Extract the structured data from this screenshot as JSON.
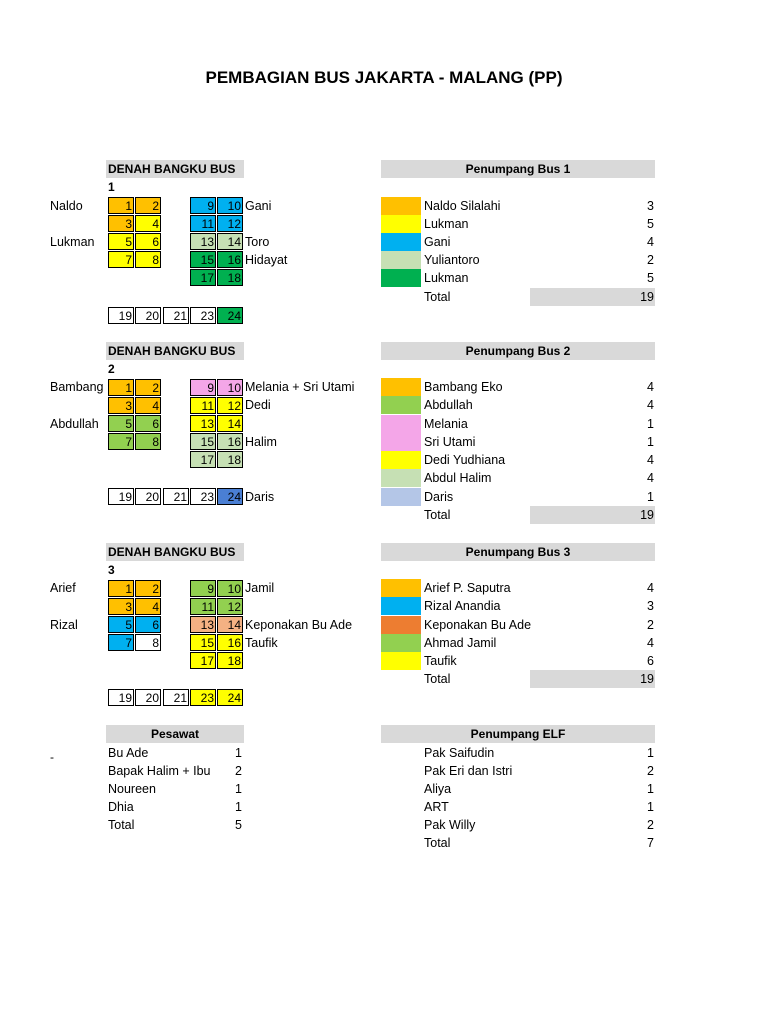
{
  "title": "PEMBAGIAN BUS JAKARTA - MALANG (PP)",
  "colors": {
    "orange": "#ffc000",
    "yellow": "#ffff00",
    "blue": "#00b0f0",
    "lightgreen": "#c6e0b4",
    "green": "#00b050",
    "midgreen": "#92d050",
    "pink": "#f4a6e8",
    "salmon": "#f4b183",
    "darkorange": "#ed7d31",
    "lightblue": "#b4c6e7",
    "cornflower": "#4a7fd4",
    "header_gray": "#d9d9d9"
  },
  "bus1": {
    "denah_title": "DENAH BANGKU BUS 1",
    "penumpang_title": "Penumpang Bus 1",
    "left_names": [
      "Naldo",
      "Lukman"
    ],
    "right_names": [
      "Gani",
      "Toro",
      "Hidayat"
    ],
    "seats_left": [
      [
        "1",
        "2"
      ],
      [
        "3",
        "4"
      ],
      [
        "5",
        "6"
      ],
      [
        "7",
        "8"
      ]
    ],
    "seats_right": [
      [
        "9",
        "10"
      ],
      [
        "11",
        "12"
      ],
      [
        "13",
        "14"
      ],
      [
        "15",
        "16"
      ],
      [
        "17",
        "18"
      ]
    ],
    "back_row": [
      "19",
      "20",
      "21",
      "23",
      "24"
    ],
    "passengers": [
      {
        "name": "Naldo Silalahi",
        "count": "3"
      },
      {
        "name": "Lukman",
        "count": "5"
      },
      {
        "name": "Gani",
        "count": "4"
      },
      {
        "name": "Yuliantoro",
        "count": "2"
      },
      {
        "name": "Lukman",
        "count": "5"
      }
    ],
    "total_label": "Total",
    "total": "19"
  },
  "bus2": {
    "denah_title": "DENAH BANGKU BUS 2",
    "penumpang_title": "Penumpang Bus 2",
    "left_names": [
      "Bambang",
      "Abdullah"
    ],
    "right_names": [
      "Melania + Sri Utami",
      "Dedi",
      "Halim",
      "Daris"
    ],
    "seats_left": [
      [
        "1",
        "2"
      ],
      [
        "3",
        "4"
      ],
      [
        "5",
        "6"
      ],
      [
        "7",
        "8"
      ]
    ],
    "seats_right": [
      [
        "9",
        "10"
      ],
      [
        "11",
        "12"
      ],
      [
        "13",
        "14"
      ],
      [
        "15",
        "16"
      ],
      [
        "17",
        "18"
      ]
    ],
    "back_row": [
      "19",
      "20",
      "21",
      "23",
      "24"
    ],
    "passengers": [
      {
        "name": "Bambang Eko",
        "count": "4"
      },
      {
        "name": "Abdullah",
        "count": "4"
      },
      {
        "name": "Melania",
        "count": "1"
      },
      {
        "name": "Sri Utami",
        "count": "1"
      },
      {
        "name": "Dedi Yudhiana",
        "count": "4"
      },
      {
        "name": "Abdul Halim",
        "count": "4"
      },
      {
        "name": "Daris",
        "count": "1"
      }
    ],
    "total_label": "Total",
    "total": "19"
  },
  "bus3": {
    "denah_title": "DENAH BANGKU BUS 3",
    "penumpang_title": "Penumpang Bus 3",
    "left_names": [
      "Arief",
      "Rizal"
    ],
    "right_names": [
      "Jamil",
      "Keponakan Bu Ade",
      "Taufik"
    ],
    "seats_left": [
      [
        "1",
        "2"
      ],
      [
        "3",
        "4"
      ],
      [
        "5",
        "6"
      ],
      [
        "7",
        "8"
      ]
    ],
    "seats_right": [
      [
        "9",
        "10"
      ],
      [
        "11",
        "12"
      ],
      [
        "13",
        "14"
      ],
      [
        "15",
        "16"
      ],
      [
        "17",
        "18"
      ]
    ],
    "back_row": [
      "19",
      "20",
      "21",
      "23",
      "24"
    ],
    "passengers": [
      {
        "name": "Arief P. Saputra",
        "count": "4"
      },
      {
        "name": "Rizal Anandia",
        "count": "3"
      },
      {
        "name": "Keponakan Bu Ade",
        "count": "2"
      },
      {
        "name": "Ahmad Jamil",
        "count": "4"
      },
      {
        "name": "Taufik",
        "count": "6"
      }
    ],
    "total_label": "Total",
    "total": "19"
  },
  "pesawat": {
    "title": "Pesawat",
    "dash": "-",
    "rows": [
      {
        "name": "Bu Ade",
        "count": "1"
      },
      {
        "name": "Bapak Halim + Ibu",
        "count": "2"
      },
      {
        "name": "Noureen",
        "count": "1"
      },
      {
        "name": "Dhia",
        "count": "1"
      },
      {
        "name": "Total",
        "count": "5"
      }
    ]
  },
  "elf": {
    "title": "Penumpang ELF",
    "rows": [
      {
        "name": "Pak Saifudin",
        "count": "1"
      },
      {
        "name": "Pak Eri dan Istri",
        "count": "2"
      },
      {
        "name": "Aliya",
        "count": "1"
      },
      {
        "name": "ART",
        "count": "1"
      },
      {
        "name": "Pak Willy",
        "count": "2"
      },
      {
        "name": "Total",
        "count": "7"
      }
    ]
  }
}
